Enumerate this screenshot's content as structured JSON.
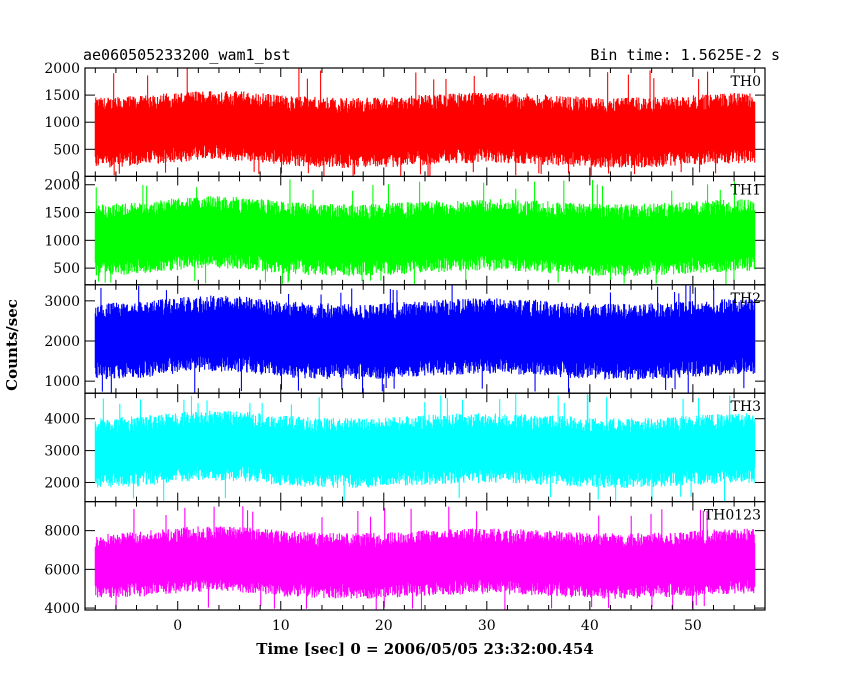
{
  "header": {
    "left_title": "ae060505233200_wam1_bst",
    "right_title": "Bin time: 1.5625E-2 s"
  },
  "chart_data": {
    "type": "line",
    "xlabel": "Time [sec] 0 = 2006/05/05 23:32:00.454",
    "ylabel": "Counts/sec",
    "xlim": [
      -9,
      57
    ],
    "x_data_range": [
      -8,
      56
    ],
    "bin_time": 0.015625,
    "xticks": [
      0,
      10,
      20,
      30,
      40,
      50
    ],
    "xtick_labels": [
      "0",
      "10",
      "20",
      "30",
      "40",
      "50"
    ],
    "grid": false,
    "panels": [
      {
        "name": "TH0",
        "color": "#ff0000",
        "ylim": [
          0,
          2000
        ],
        "yticks": [
          0,
          500,
          1000,
          1500,
          2000
        ],
        "ytick_labels": [
          "0",
          "500",
          "1000",
          "1500",
          "2000"
        ],
        "mean": 780,
        "lower_envelope": 200,
        "upper_envelope": 1500,
        "peak": 2000
      },
      {
        "name": "TH1",
        "color": "#00ff00",
        "ylim": [
          200,
          2150
        ],
        "yticks": [
          500,
          1000,
          1500,
          2000
        ],
        "ytick_labels": [
          "500",
          "1000",
          "1500",
          "2000"
        ],
        "mean": 1000,
        "lower_envelope": 400,
        "upper_envelope": 1700,
        "peak": 2100
      },
      {
        "name": "TH2",
        "color": "#0000ff",
        "ylim": [
          700,
          3400
        ],
        "yticks": [
          1000,
          2000,
          3000
        ],
        "ytick_labels": [
          "1000",
          "2000",
          "3000"
        ],
        "mean": 2000,
        "lower_envelope": 1100,
        "upper_envelope": 3000,
        "peak": 3400
      },
      {
        "name": "TH3",
        "color": "#00ffff",
        "ylim": [
          1400,
          4800
        ],
        "yticks": [
          2000,
          3000,
          4000
        ],
        "ytick_labels": [
          "2000",
          "3000",
          "4000"
        ],
        "mean": 2950,
        "lower_envelope": 1900,
        "upper_envelope": 4100,
        "peak": 4800
      },
      {
        "name": "TH0123",
        "color": "#ff00ff",
        "ylim": [
          3900,
          9500
        ],
        "yticks": [
          4000,
          6000,
          8000
        ],
        "ytick_labels": [
          "4000",
          "6000",
          "8000"
        ],
        "mean": 6300,
        "lower_envelope": 4600,
        "upper_envelope": 8000,
        "peak": 9300
      }
    ]
  }
}
